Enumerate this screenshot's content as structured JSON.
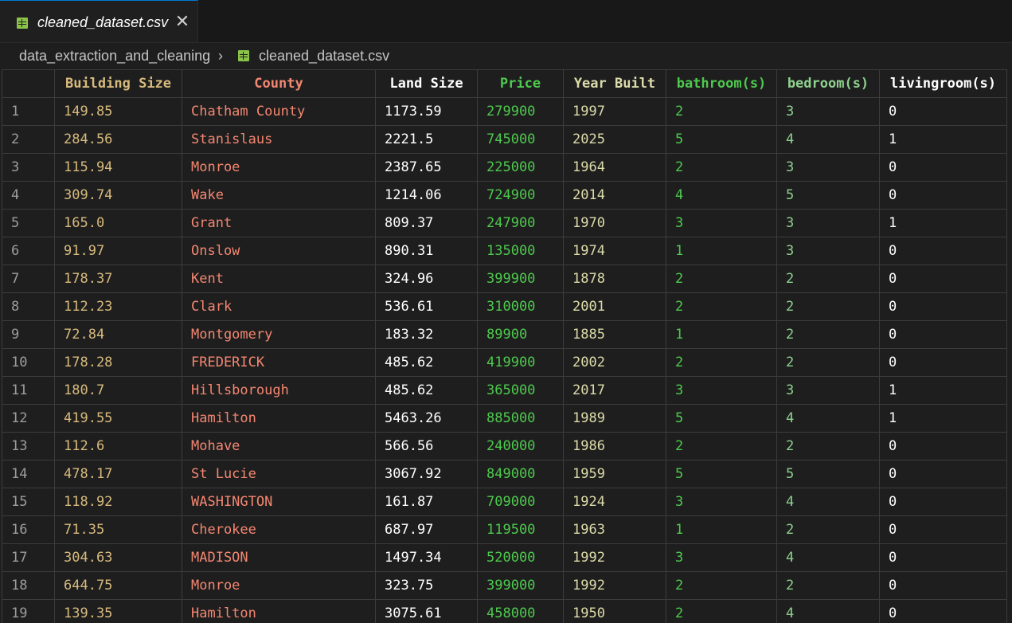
{
  "tab": {
    "title": "cleaned_dataset.csv",
    "file_icon": "csv-file-icon",
    "close_icon": "close-icon"
  },
  "breadcrumb": {
    "folder": "data_extraction_and_cleaning",
    "file": "cleaned_dataset.csv"
  },
  "table": {
    "columns": [
      "Building Size",
      "County",
      "Land Size",
      "Price",
      "Year Built",
      "bathroom(s)",
      "bedroom(s)",
      "livingroom(s)"
    ],
    "rows": [
      [
        "1",
        "149.85",
        "Chatham County",
        "1173.59",
        "279900",
        "1997",
        "2",
        "3",
        "0"
      ],
      [
        "2",
        "284.56",
        "Stanislaus",
        "2221.5",
        "745000",
        "2025",
        "5",
        "4",
        "1"
      ],
      [
        "3",
        "115.94",
        "Monroe",
        "2387.65",
        "225000",
        "1964",
        "2",
        "3",
        "0"
      ],
      [
        "4",
        "309.74",
        "Wake",
        "1214.06",
        "724900",
        "2014",
        "4",
        "5",
        "0"
      ],
      [
        "5",
        "165.0",
        "Grant",
        "809.37",
        "247900",
        "1970",
        "3",
        "3",
        "1"
      ],
      [
        "6",
        "91.97",
        "Onslow",
        "890.31",
        "135000",
        "1974",
        "1",
        "3",
        "0"
      ],
      [
        "7",
        "178.37",
        "Kent",
        "324.96",
        "399900",
        "1878",
        "2",
        "2",
        "0"
      ],
      [
        "8",
        "112.23",
        "Clark",
        "536.61",
        "310000",
        "2001",
        "2",
        "2",
        "0"
      ],
      [
        "9",
        "72.84",
        "Montgomery",
        "183.32",
        "89900",
        "1885",
        "1",
        "2",
        "0"
      ],
      [
        "10",
        "178.28",
        "FREDERICK",
        "485.62",
        "419900",
        "2002",
        "2",
        "2",
        "0"
      ],
      [
        "11",
        "180.7",
        "Hillsborough",
        "485.62",
        "365000",
        "2017",
        "3",
        "3",
        "1"
      ],
      [
        "12",
        "419.55",
        "Hamilton",
        "5463.26",
        "885000",
        "1989",
        "5",
        "4",
        "1"
      ],
      [
        "13",
        "112.6",
        "Mohave",
        "566.56",
        "240000",
        "1986",
        "2",
        "2",
        "0"
      ],
      [
        "14",
        "478.17",
        "St Lucie",
        "3067.92",
        "849000",
        "1959",
        "5",
        "5",
        "0"
      ],
      [
        "15",
        "118.92",
        "WASHINGTON",
        "161.87",
        "709000",
        "1924",
        "3",
        "4",
        "0"
      ],
      [
        "16",
        "71.35",
        "Cherokee",
        "687.97",
        "119500",
        "1963",
        "1",
        "2",
        "0"
      ],
      [
        "17",
        "304.63",
        "MADISON",
        "1497.34",
        "520000",
        "1992",
        "3",
        "4",
        "0"
      ],
      [
        "18",
        "644.75",
        "Monroe",
        "323.75",
        "399000",
        "1992",
        "2",
        "2",
        "0"
      ],
      [
        "19",
        "139.35",
        "Hamilton",
        "3075.61",
        "458000",
        "1950",
        "2",
        "4",
        "0"
      ]
    ]
  }
}
